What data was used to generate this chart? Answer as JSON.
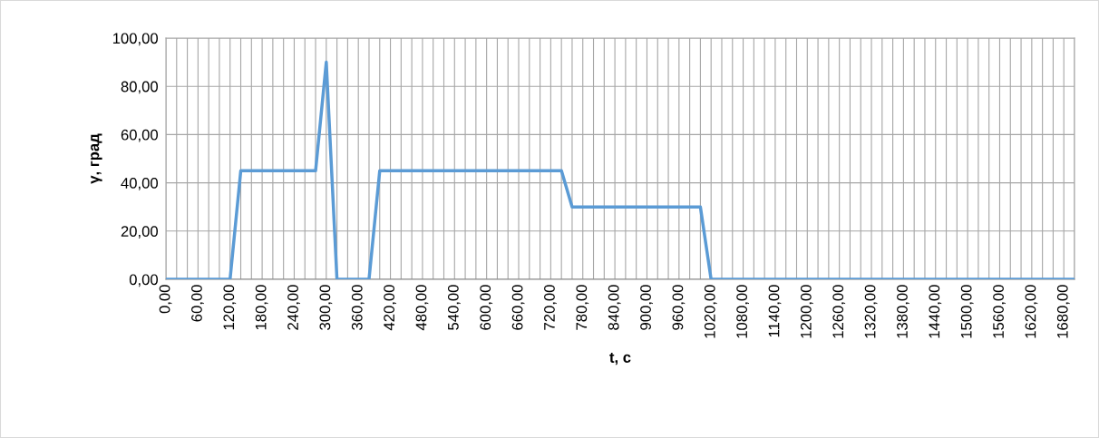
{
  "chart_data": {
    "type": "line",
    "xlabel": "t, с",
    "ylabel": "γ, град",
    "categories": [
      "0,00",
      null,
      null,
      "60,00",
      null,
      null,
      "120,00",
      null,
      null,
      "180,00",
      null,
      null,
      "240,00",
      null,
      null,
      "300,00",
      null,
      null,
      "360,00",
      null,
      null,
      "420,00",
      null,
      null,
      "480,00",
      null,
      null,
      "540,00",
      null,
      null,
      "600,00",
      null,
      null,
      "660,00",
      null,
      null,
      "720,00",
      null,
      null,
      "780,00",
      null,
      null,
      "840,00",
      null,
      null,
      "900,00",
      null,
      null,
      "960,00",
      null,
      null,
      "1020,00",
      null,
      null,
      "1080,00",
      null,
      null,
      "1140,00",
      null,
      null,
      "1200,00",
      null,
      null,
      "1260,00",
      null,
      null,
      "1320,00",
      null,
      null,
      "1380,00",
      null,
      null,
      "1440,00",
      null,
      null,
      "1500,00",
      null,
      null,
      "1560,00",
      null,
      null,
      "1620,00",
      null,
      null,
      "1680,00",
      null
    ],
    "series": [
      {
        "color": "#5b9bd5",
        "values": [
          0,
          0,
          0,
          0,
          0,
          0,
          0,
          45,
          45,
          45,
          45,
          45,
          45,
          45,
          45,
          90,
          0,
          0,
          0,
          0,
          45,
          45,
          45,
          45,
          45,
          45,
          45,
          45,
          45,
          45,
          45,
          45,
          45,
          45,
          45,
          45,
          45,
          45,
          30,
          30,
          30,
          30,
          30,
          30,
          30,
          30,
          30,
          30,
          30,
          30,
          30,
          0,
          0,
          0,
          0,
          0,
          0,
          0,
          0,
          0,
          0,
          0,
          0,
          0,
          0,
          0,
          0,
          0,
          0,
          0,
          0,
          0,
          0,
          0,
          0,
          0,
          0,
          0,
          0,
          0,
          0,
          0,
          0,
          0,
          0,
          0
        ]
      }
    ],
    "ylim": [
      0,
      100
    ],
    "yticks": [
      {
        "value": 0,
        "label": "0,00"
      },
      {
        "value": 20,
        "label": "20,00"
      },
      {
        "value": 40,
        "label": "40,00"
      },
      {
        "value": 60,
        "label": "60,00"
      },
      {
        "value": 80,
        "label": "80,00"
      },
      {
        "value": 100,
        "label": "100,00"
      }
    ],
    "grid": true,
    "legend": false,
    "marker": "none",
    "line_style": "solid"
  }
}
